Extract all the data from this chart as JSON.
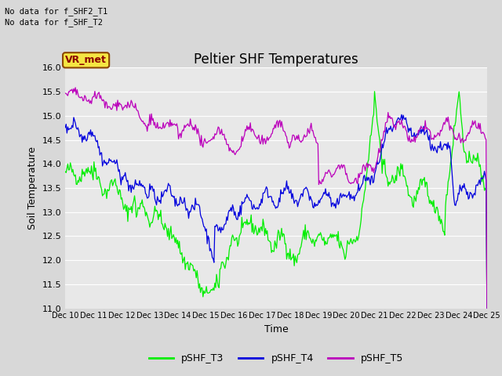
{
  "title": "Peltier SHF Temperatures",
  "xlabel": "Time",
  "ylabel": "Soil Temperature",
  "ylim": [
    11.0,
    16.0
  ],
  "yticks": [
    11.0,
    11.5,
    12.0,
    12.5,
    13.0,
    13.5,
    14.0,
    14.5,
    15.0,
    15.5,
    16.0
  ],
  "xtick_labels": [
    "Dec 10",
    "Dec 11",
    "Dec 12",
    "Dec 13",
    "Dec 14",
    "Dec 15",
    "Dec 16",
    "Dec 17",
    "Dec 18",
    "Dec 19",
    "Dec 20",
    "Dec 21",
    "Dec 22",
    "Dec 23",
    "Dec 24",
    "Dec 25"
  ],
  "no_data_text": [
    "No data for f_SHF2_T1",
    "No data for f_SHF_T2"
  ],
  "legend_label_text": "VR_met",
  "series_labels": [
    "pSHF_T3",
    "pSHF_T4",
    "pSHF_T5"
  ],
  "series_colors": [
    "#00ee00",
    "#0000dd",
    "#bb00bb"
  ],
  "background_color": "#d8d8d8",
  "plot_bg_color": "#e8e8e8",
  "grid_color": "#ffffff",
  "title_fontsize": 12,
  "axis_fontsize": 9,
  "tick_fontsize": 8,
  "n_points": 500
}
